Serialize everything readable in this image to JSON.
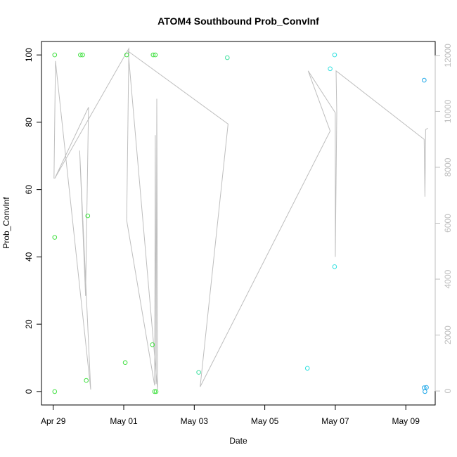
{
  "chart_data": {
    "type": "scatter",
    "title": "ATOM4 Southbound Prob_ConvInf",
    "xlabel": "Date",
    "ylabel": "Prob_ConvInf",
    "x_ticks": [
      "Apr 29",
      "May 01",
      "May 03",
      "May 05",
      "May 07",
      "May 09"
    ],
    "x_tick_values": [
      "2015-04-29",
      "2015-05-01",
      "2015-05-03",
      "2015-05-05",
      "2015-05-07",
      "2015-05-09"
    ],
    "xlim": [
      "2015-04-28T16:00",
      "2015-05-09T20:00"
    ],
    "ylim": [
      -4,
      104
    ],
    "y_ticks": [
      0,
      20,
      40,
      60,
      80,
      100
    ],
    "y2_ticks": [
      0,
      2000,
      4000,
      6000,
      8000,
      10000,
      12000
    ],
    "y2lim": [
      -500,
      12500
    ],
    "colors": {
      "line": "#bebebe",
      "axis": "#000000",
      "right_axis": "#bdbdbd"
    },
    "points": [
      {
        "x": "2015-04-29T01:00",
        "y": 100,
        "color": "#40e040"
      },
      {
        "x": "2015-04-29T01:00",
        "y": 45.8,
        "color": "#40e040"
      },
      {
        "x": "2015-04-29T01:00",
        "y": 0,
        "color": "#40e040"
      },
      {
        "x": "2015-04-29T18:30",
        "y": 100,
        "color": "#40e040"
      },
      {
        "x": "2015-04-29T20:00",
        "y": 100,
        "color": "#40e040"
      },
      {
        "x": "2015-04-29T22:30",
        "y": 3.3,
        "color": "#40e040"
      },
      {
        "x": "2015-04-29T23:30",
        "y": 52.2,
        "color": "#40e040"
      },
      {
        "x": "2015-05-01T01:00",
        "y": 8.6,
        "color": "#40e040"
      },
      {
        "x": "2015-05-01T02:00",
        "y": 100,
        "color": "#40e040"
      },
      {
        "x": "2015-05-01T19:30",
        "y": 13.9,
        "color": "#40e040"
      },
      {
        "x": "2015-05-01T20:00",
        "y": 100,
        "color": "#40e040"
      },
      {
        "x": "2015-05-01T21:00",
        "y": 0,
        "color": "#40e040"
      },
      {
        "x": "2015-05-01T21:30",
        "y": 100,
        "color": "#40e040"
      },
      {
        "x": "2015-05-01T22:00",
        "y": 0,
        "color": "#40e040"
      },
      {
        "x": "2015-05-03T03:00",
        "y": 5.7,
        "color": "#40e0a0"
      },
      {
        "x": "2015-05-03T22:30",
        "y": 99.2,
        "color": "#40e0a0"
      },
      {
        "x": "2015-05-06T05:00",
        "y": 6.9,
        "color": "#30e0e0"
      },
      {
        "x": "2015-05-06T20:30",
        "y": 95.9,
        "color": "#30e0e0"
      },
      {
        "x": "2015-05-06T23:30",
        "y": 100,
        "color": "#30e0e0"
      },
      {
        "x": "2015-05-06T23:30",
        "y": 37.1,
        "color": "#30e0e0"
      },
      {
        "x": "2015-05-09T12:30",
        "y": 92.5,
        "color": "#20a8e8"
      },
      {
        "x": "2015-05-09T12:30",
        "y": 1.1,
        "color": "#20a8e8"
      },
      {
        "x": "2015-05-09T13:00",
        "y": 0,
        "color": "#20a8e8"
      },
      {
        "x": "2015-05-09T14:00",
        "y": 1.2,
        "color": "#20a8e8"
      }
    ],
    "secondary_line": [
      {
        "x": "2015-04-29T00:30",
        "y2": 7600
      },
      {
        "x": "2015-04-29T01:30",
        "y2": 11800
      },
      {
        "x": "2015-04-30T01:30",
        "y2": 50
      },
      {
        "x": "2015-04-29T18:00",
        "y2": 8600
      },
      {
        "x": "2015-04-29T22:00",
        "y2": 3400
      },
      {
        "x": "2015-04-30T00:00",
        "y2": 10150
      },
      {
        "x": "2015-04-29T01:00",
        "y2": 7600
      },
      {
        "x": "2015-05-01T03:30",
        "y2": 12250
      },
      {
        "x": "2015-05-01T02:00",
        "y2": 6100
      },
      {
        "x": "2015-05-01T21:00",
        "y2": 200
      },
      {
        "x": "2015-05-01T21:30",
        "y2": 9150
      },
      {
        "x": "2015-05-01T22:00",
        "y2": 250
      },
      {
        "x": "2015-05-01T22:30",
        "y2": 10450
      },
      {
        "x": "2015-05-01T23:00",
        "y2": 50
      },
      {
        "x": "2015-05-01T03:00",
        "y2": 12150
      },
      {
        "x": "2015-05-03T23:00",
        "y2": 9550
      },
      {
        "x": "2015-05-03T04:00",
        "y2": 150
      },
      {
        "x": "2015-05-06T20:30",
        "y2": 9300
      },
      {
        "x": "2015-05-06T05:30",
        "y2": 11450
      },
      {
        "x": "2015-05-07T00:00",
        "y2": 9950
      },
      {
        "x": "2015-05-07T00:00",
        "y2": 4800
      },
      {
        "x": "2015-05-07T01:00",
        "y2": 9950
      },
      {
        "x": "2015-05-07T00:30",
        "y2": 11450
      },
      {
        "x": "2015-05-09T12:30",
        "y2": 9000
      },
      {
        "x": "2015-05-09T13:00",
        "y2": 6950
      },
      {
        "x": "2015-05-09T13:30",
        "y2": 9350
      },
      {
        "x": "2015-05-09T15:00",
        "y2": 9400
      }
    ]
  }
}
